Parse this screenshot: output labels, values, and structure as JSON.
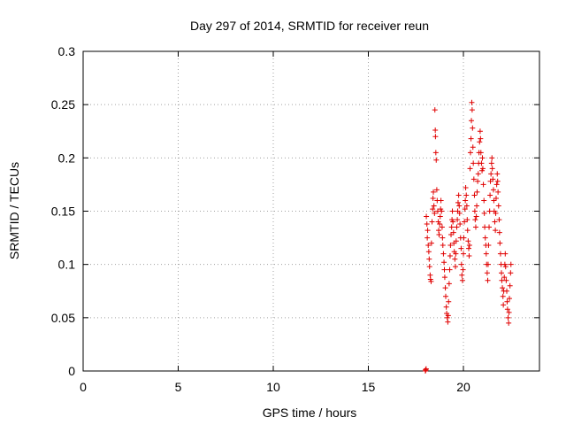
{
  "chart_data": {
    "type": "scatter",
    "title": "Day 297 of 2014, SRMTID for receiver reun",
    "xlabel": "GPS time / hours",
    "ylabel": "SRMTID / TECUs",
    "xlim": [
      0,
      24
    ],
    "ylim": [
      0,
      0.3
    ],
    "xticks": [
      0,
      5,
      10,
      15,
      20
    ],
    "xtick_labels": [
      "0",
      "5",
      "10",
      "15",
      "20"
    ],
    "yticks": [
      0,
      0.05,
      0.1,
      0.15,
      0.2,
      0.25,
      0.3
    ],
    "ytick_labels": [
      "0",
      "0.05",
      "0.1",
      "0.15",
      "0.2",
      "0.25",
      "0.3"
    ],
    "grid": true,
    "marker": "+",
    "series_color": "#e00000",
    "series": [
      {
        "name": "SRMTID",
        "points": [
          [
            18.0,
            0.0
          ],
          [
            18.02,
            0.001
          ],
          [
            18.04,
            0.002
          ],
          [
            18.01,
            0.001
          ],
          [
            18.05,
            0.145
          ],
          [
            18.08,
            0.138
          ],
          [
            18.12,
            0.132
          ],
          [
            18.1,
            0.125
          ],
          [
            18.15,
            0.118
          ],
          [
            18.18,
            0.112
          ],
          [
            18.2,
            0.105
          ],
          [
            18.22,
            0.098
          ],
          [
            18.25,
            0.09
          ],
          [
            18.27,
            0.086
          ],
          [
            18.3,
            0.084
          ],
          [
            18.32,
            0.12
          ],
          [
            18.35,
            0.14
          ],
          [
            18.38,
            0.152
          ],
          [
            18.4,
            0.162
          ],
          [
            18.42,
            0.168
          ],
          [
            18.45,
            0.155
          ],
          [
            18.48,
            0.148
          ],
          [
            18.5,
            0.245
          ],
          [
            18.52,
            0.226
          ],
          [
            18.53,
            0.22
          ],
          [
            18.55,
            0.205
          ],
          [
            18.57,
            0.198
          ],
          [
            18.6,
            0.17
          ],
          [
            18.62,
            0.16
          ],
          [
            18.65,
            0.15
          ],
          [
            18.68,
            0.14
          ],
          [
            18.7,
            0.132
          ],
          [
            18.72,
            0.128
          ],
          [
            18.75,
            0.138
          ],
          [
            18.78,
            0.145
          ],
          [
            18.8,
            0.152
          ],
          [
            18.82,
            0.16
          ],
          [
            18.85,
            0.15
          ],
          [
            18.88,
            0.135
          ],
          [
            18.9,
            0.125
          ],
          [
            18.92,
            0.118
          ],
          [
            18.95,
            0.11
          ],
          [
            18.98,
            0.102
          ],
          [
            19.0,
            0.095
          ],
          [
            19.02,
            0.088
          ],
          [
            19.05,
            0.078
          ],
          [
            19.07,
            0.07
          ],
          [
            19.1,
            0.06
          ],
          [
            19.12,
            0.054
          ],
          [
            19.15,
            0.05
          ],
          [
            19.18,
            0.046
          ],
          [
            19.2,
            0.052
          ],
          [
            19.22,
            0.065
          ],
          [
            19.25,
            0.082
          ],
          [
            19.28,
            0.095
          ],
          [
            19.3,
            0.108
          ],
          [
            19.32,
            0.118
          ],
          [
            19.35,
            0.128
          ],
          [
            19.38,
            0.135
          ],
          [
            19.4,
            0.142
          ],
          [
            19.42,
            0.15
          ],
          [
            19.45,
            0.14
          ],
          [
            19.48,
            0.13
          ],
          [
            19.5,
            0.12
          ],
          [
            19.52,
            0.112
          ],
          [
            19.55,
            0.105
          ],
          [
            19.58,
            0.098
          ],
          [
            19.6,
            0.11
          ],
          [
            19.62,
            0.122
          ],
          [
            19.65,
            0.135
          ],
          [
            19.68,
            0.142
          ],
          [
            19.7,
            0.15
          ],
          [
            19.72,
            0.158
          ],
          [
            19.75,
            0.165
          ],
          [
            19.78,
            0.155
          ],
          [
            19.8,
            0.148
          ],
          [
            19.82,
            0.138
          ],
          [
            19.85,
            0.125
          ],
          [
            19.88,
            0.115
          ],
          [
            19.9,
            0.1
          ],
          [
            19.92,
            0.09
          ],
          [
            19.95,
            0.085
          ],
          [
            19.98,
            0.095
          ],
          [
            20.0,
            0.11
          ],
          [
            20.02,
            0.125
          ],
          [
            20.05,
            0.14
          ],
          [
            20.08,
            0.152
          ],
          [
            20.1,
            0.16
          ],
          [
            20.12,
            0.172
          ],
          [
            20.15,
            0.165
          ],
          [
            20.18,
            0.155
          ],
          [
            20.2,
            0.142
          ],
          [
            20.22,
            0.132
          ],
          [
            20.25,
            0.122
          ],
          [
            20.28,
            0.115
          ],
          [
            20.3,
            0.108
          ],
          [
            20.32,
            0.118
          ],
          [
            20.35,
            0.19
          ],
          [
            20.37,
            0.205
          ],
          [
            20.4,
            0.218
          ],
          [
            20.42,
            0.235
          ],
          [
            20.44,
            0.252
          ],
          [
            20.46,
            0.245
          ],
          [
            20.48,
            0.228
          ],
          [
            20.5,
            0.21
          ],
          [
            20.52,
            0.195
          ],
          [
            20.55,
            0.18
          ],
          [
            20.58,
            0.165
          ],
          [
            20.6,
            0.15
          ],
          [
            20.62,
            0.142
          ],
          [
            20.65,
            0.135
          ],
          [
            20.68,
            0.145
          ],
          [
            20.7,
            0.155
          ],
          [
            20.72,
            0.168
          ],
          [
            20.75,
            0.178
          ],
          [
            20.78,
            0.185
          ],
          [
            20.8,
            0.195
          ],
          [
            20.82,
            0.205
          ],
          [
            20.85,
            0.215
          ],
          [
            20.88,
            0.225
          ],
          [
            20.9,
            0.218
          ],
          [
            20.92,
            0.205
          ],
          [
            20.95,
            0.195
          ],
          [
            20.98,
            0.188
          ],
          [
            21.0,
            0.2
          ],
          [
            21.02,
            0.19
          ],
          [
            21.05,
            0.175
          ],
          [
            21.08,
            0.16
          ],
          [
            21.1,
            0.148
          ],
          [
            21.12,
            0.135
          ],
          [
            21.15,
            0.125
          ],
          [
            21.18,
            0.118
          ],
          [
            21.2,
            0.11
          ],
          [
            21.22,
            0.1
          ],
          [
            21.25,
            0.092
          ],
          [
            21.28,
            0.085
          ],
          [
            21.3,
            0.1
          ],
          [
            21.32,
            0.118
          ],
          [
            21.35,
            0.135
          ],
          [
            21.38,
            0.15
          ],
          [
            21.4,
            0.165
          ],
          [
            21.42,
            0.178
          ],
          [
            21.45,
            0.185
          ],
          [
            21.48,
            0.195
          ],
          [
            21.5,
            0.2
          ],
          [
            21.52,
            0.19
          ],
          [
            21.55,
            0.18
          ],
          [
            21.58,
            0.17
          ],
          [
            21.6,
            0.16
          ],
          [
            21.62,
            0.15
          ],
          [
            21.65,
            0.14
          ],
          [
            21.68,
            0.132
          ],
          [
            21.7,
            0.148
          ],
          [
            21.72,
            0.162
          ],
          [
            21.75,
            0.175
          ],
          [
            21.78,
            0.185
          ],
          [
            21.8,
            0.178
          ],
          [
            21.82,
            0.168
          ],
          [
            21.85,
            0.155
          ],
          [
            21.88,
            0.142
          ],
          [
            21.9,
            0.13
          ],
          [
            21.92,
            0.12
          ],
          [
            21.95,
            0.11
          ],
          [
            21.98,
            0.1
          ],
          [
            22.0,
            0.092
          ],
          [
            22.02,
            0.085
          ],
          [
            22.05,
            0.078
          ],
          [
            22.08,
            0.07
          ],
          [
            22.1,
            0.062
          ],
          [
            22.12,
            0.075
          ],
          [
            22.15,
            0.088
          ],
          [
            22.18,
            0.1
          ],
          [
            22.2,
            0.11
          ],
          [
            22.22,
            0.098
          ],
          [
            22.25,
            0.085
          ],
          [
            22.28,
            0.075
          ],
          [
            22.3,
            0.065
          ],
          [
            22.32,
            0.058
          ],
          [
            22.35,
            0.05
          ],
          [
            22.38,
            0.045
          ],
          [
            22.4,
            0.055
          ],
          [
            22.42,
            0.068
          ],
          [
            22.45,
            0.08
          ],
          [
            22.48,
            0.092
          ],
          [
            22.5,
            0.1
          ]
        ]
      }
    ]
  }
}
